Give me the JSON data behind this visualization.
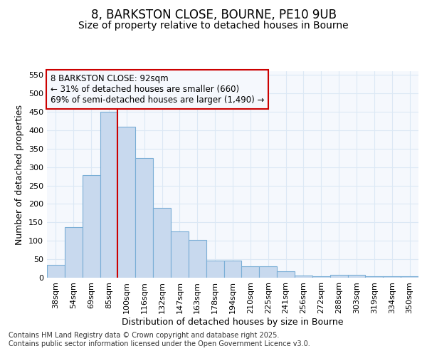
{
  "title_line1": "8, BARKSTON CLOSE, BOURNE, PE10 9UB",
  "title_line2": "Size of property relative to detached houses in Bourne",
  "xlabel": "Distribution of detached houses by size in Bourne",
  "ylabel": "Number of detached properties",
  "categories": [
    "38sqm",
    "54sqm",
    "69sqm",
    "85sqm",
    "100sqm",
    "116sqm",
    "132sqm",
    "147sqm",
    "163sqm",
    "178sqm",
    "194sqm",
    "210sqm",
    "225sqm",
    "241sqm",
    "256sqm",
    "272sqm",
    "288sqm",
    "303sqm",
    "319sqm",
    "334sqm",
    "350sqm"
  ],
  "values": [
    35,
    137,
    278,
    450,
    410,
    325,
    190,
    126,
    102,
    46,
    46,
    30,
    30,
    18,
    5,
    4,
    8,
    8,
    4,
    3,
    4
  ],
  "bar_color": "#c8d9ee",
  "bar_edgecolor": "#7aaed6",
  "vline_color": "#cc0000",
  "vline_x_index": 3,
  "annotation_line1": "8 BARKSTON CLOSE: 92sqm",
  "annotation_line2": "← 31% of detached houses are smaller (660)",
  "annotation_line3": "69% of semi-detached houses are larger (1,490) →",
  "annotation_box_edgecolor": "#cc0000",
  "ylim": [
    0,
    560
  ],
  "yticks": [
    0,
    50,
    100,
    150,
    200,
    250,
    300,
    350,
    400,
    450,
    500,
    550
  ],
  "background_color": "#ffffff",
  "plot_bg_color": "#f5f8fd",
  "grid_color": "#dce8f5",
  "title_fontsize": 12,
  "subtitle_fontsize": 10,
  "axis_label_fontsize": 9,
  "tick_fontsize": 8,
  "annotation_fontsize": 8.5,
  "footer_fontsize": 7,
  "footer_line1": "Contains HM Land Registry data © Crown copyright and database right 2025.",
  "footer_line2": "Contains public sector information licensed under the Open Government Licence v3.0."
}
